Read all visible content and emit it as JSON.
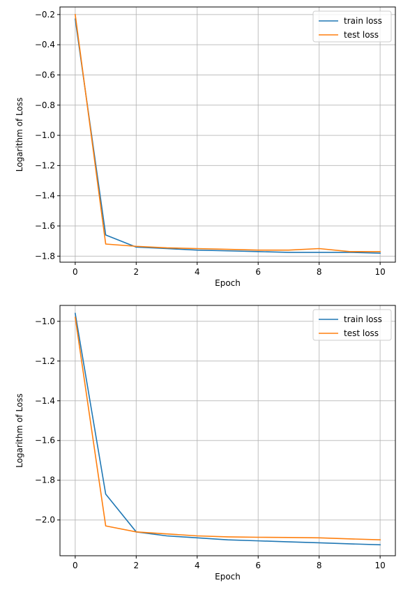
{
  "chart_data": [
    {
      "type": "line",
      "xlabel": "Epoch",
      "ylabel": "Logarithm of Loss",
      "xlim": [
        -0.5,
        10.5
      ],
      "ylim": [
        -1.84,
        -0.15
      ],
      "xticks": [
        0,
        2,
        4,
        6,
        8,
        10
      ],
      "yticks": [
        -1.8,
        -1.6,
        -1.4,
        -1.2,
        -1.0,
        -0.8,
        -0.6,
        -0.4,
        -0.2
      ],
      "grid": true,
      "legend_position": "top-right",
      "x": [
        0,
        1,
        2,
        3,
        4,
        5,
        6,
        7,
        8,
        9,
        10
      ],
      "series": [
        {
          "name": "train loss",
          "color": "#1f77b4",
          "values": [
            -0.23,
            -1.66,
            -1.74,
            -1.75,
            -1.76,
            -1.765,
            -1.77,
            -1.775,
            -1.775,
            -1.775,
            -1.78
          ]
        },
        {
          "name": "test loss",
          "color": "#ff7f0e",
          "values": [
            -0.2,
            -1.72,
            -1.735,
            -1.745,
            -1.75,
            -1.755,
            -1.76,
            -1.76,
            -1.75,
            -1.77,
            -1.77
          ]
        }
      ]
    },
    {
      "type": "line",
      "xlabel": "Epoch",
      "ylabel": "Logarithm of Loss",
      "xlim": [
        -0.5,
        10.5
      ],
      "ylim": [
        -2.18,
        -0.92
      ],
      "xticks": [
        0,
        2,
        4,
        6,
        8,
        10
      ],
      "yticks": [
        -2.0,
        -1.8,
        -1.6,
        -1.4,
        -1.2,
        -1.0
      ],
      "grid": true,
      "legend_position": "top-right",
      "x": [
        0,
        1,
        2,
        3,
        4,
        5,
        6,
        7,
        8,
        9,
        10
      ],
      "series": [
        {
          "name": "train loss",
          "color": "#1f77b4",
          "values": [
            -0.96,
            -1.87,
            -2.06,
            -2.08,
            -2.09,
            -2.1,
            -2.105,
            -2.11,
            -2.115,
            -2.12,
            -2.125
          ]
        },
        {
          "name": "test loss",
          "color": "#ff7f0e",
          "values": [
            -0.98,
            -2.03,
            -2.06,
            -2.07,
            -2.08,
            -2.085,
            -2.087,
            -2.088,
            -2.09,
            -2.095,
            -2.1
          ]
        }
      ]
    }
  ]
}
